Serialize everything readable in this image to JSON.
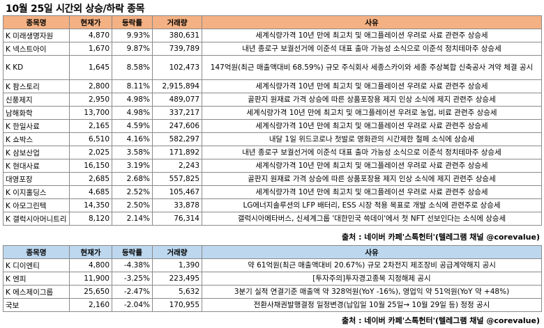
{
  "title": "10월 25일  시간외 상승/하락 종목",
  "headers": [
    "종목명",
    "현재가",
    "등락률",
    "거래량",
    "사유"
  ],
  "rising": [
    {
      "name": "K 미래생명자원",
      "price": "4,870",
      "rate": "9.93%",
      "volume": "380,631",
      "reason": "세계식량가격 10년 만에 최고치 및 애그플레이션 우려로 사료 관련주 상승세"
    },
    {
      "name": "K 넥스트아이",
      "price": "1,670",
      "rate": "9.87%",
      "volume": "739,789",
      "reason": "내년 종로구 보궐선거에 이준석 대표 출마 가능성 소식으로 이준석 정치테마주 상승세"
    },
    {
      "name": "K KD",
      "price": "1,645",
      "rate": "8.58%",
      "volume": "102,473",
      "reason": "147억원(최근 매출액대비 68.59%) 규모 주식회사 세종스카이와 세종 주상복합 신축공사 겨약 체결 공시"
    },
    {
      "name": "K 팜스토리",
      "price": "2,800",
      "rate": "8.11%",
      "volume": "2,915,894",
      "reason": "세계식량가격 10년 만에 최고치 및 애그플레이션 우려로 사료 관련주 상승세"
    },
    {
      "name": "신풍제지",
      "price": "2,950",
      "rate": "4.98%",
      "volume": "489,077",
      "reason": "골판지 원재료 가격 상승에 따른 상품포장용 제지 인상 소식에 제지 관련주 상승세"
    },
    {
      "name": "남해화학",
      "price": "13,700",
      "rate": "4.98%",
      "volume": "337,217",
      "reason": "세계식량가격 10년 만에 최고치 및 애그플레이션 우려로 농업, 비료 관련주 상승세"
    },
    {
      "name": "K 한일사료",
      "price": "2,165",
      "rate": "4.59%",
      "volume": "247,606",
      "reason": "세계식량가격 10년 만에 최고치 및 애그플레이션 우려로 사료 관련주 상승세"
    },
    {
      "name": "K 쇼박스",
      "price": "6,510",
      "rate": "4.16%",
      "volume": "582,297",
      "reason": "내달 1일 위드코로나 첫발로 영화관의 시간제한 철페 소식에 상승세"
    },
    {
      "name": "K 삼보산업",
      "price": "2,025",
      "rate": "3.58%",
      "volume": "171,892",
      "reason": "내년 종로구 보궐선거에 이준석 대표 출마 가능성 소식으로 이준석 정치테마주 상승세"
    },
    {
      "name": "K 현대사료",
      "price": "16,150",
      "rate": "3.19%",
      "volume": "2,243",
      "reason": "세계식량가격 10년 만에 최고치 및 애그플레이션 우려로 사료 관련주 상승세"
    },
    {
      "name": "대영포장",
      "price": "2,685",
      "rate": "2.68%",
      "volume": "557,825",
      "reason": "골판지 원재료 가격 상승에 따른 상품포장용 제지 인상 소식에 제지 관련주 상승세"
    },
    {
      "name": "K 이지홀딩스",
      "price": "4,685",
      "rate": "2.52%",
      "volume": "105,467",
      "reason": "세계식량가격 10년 만에 최고치 및 애그플레이션 우려로 사료 관련주 상승세"
    },
    {
      "name": "K 아모그린텍",
      "price": "14,350",
      "rate": "2.50%",
      "volume": "33,878",
      "reason": "LG에너지솔루션의 LFP 배터리, ESS 시장 적용 목표로 개발 소식에 관련주로 상승세"
    },
    {
      "name": "K 갤럭시아머니트리",
      "price": "8,120",
      "rate": "2.14%",
      "volume": "76,314",
      "reason": "갤럭시아메타버스, 신세계그룹 '대한민국 쓱데이'에서 첫 NFT 선보인다는 소식에 상승세"
    }
  ],
  "source1": "출처 : 네이버 카페'스톡헌터'(텔레그램 채널 @corevalue)",
  "falling": [
    {
      "name": "K 디이엔티",
      "price": "4,800",
      "rate": "-4.38%",
      "volume": "1,390",
      "reason": "약 61억원(최근 매출액대비 20.67%) 규모 2차전지 제조장비 공급계약해지 공시"
    },
    {
      "name": "K 엔피",
      "price": "11,900",
      "rate": "-3.25%",
      "volume": "223,495",
      "reason": "[투자주의]투자경고종목 지정해제 공시"
    },
    {
      "name": "K 에스제이그룹",
      "price": "25,650",
      "rate": "-2.47%",
      "volume": "5,632",
      "reason": "3분기 실적 연결기준 매출액 약 328억원(YoY -16%), 영업익 약 51억원(YoY 약 +48%)"
    },
    {
      "name": "국보",
      "price": "2,160",
      "rate": "-2.04%",
      "volume": "170,955",
      "reason": "전환사채권발행결정 일정변경(납입일 10월 25일→ 10월 29일 등) 정정 공시"
    }
  ],
  "source2": "출처 : 네이버 카페'스톡헌터'(텔레그램 채널 @corevalue)",
  "colors": {
    "rising_header": "#f4b183",
    "falling_header": "#bdd7ee"
  }
}
